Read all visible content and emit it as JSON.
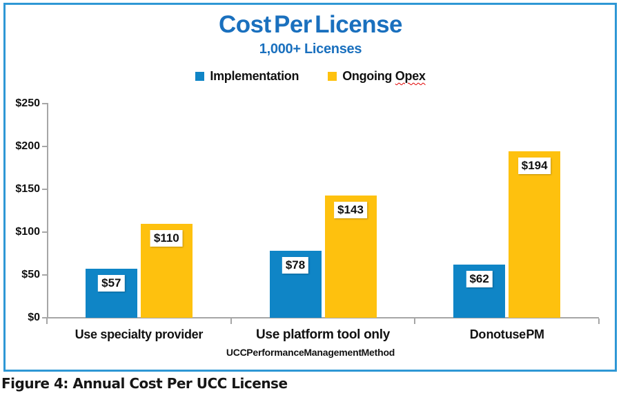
{
  "figure": {
    "caption": "Figure 4: Annual Cost Per UCC License"
  },
  "legend": {
    "items": [
      {
        "label": "Implementation",
        "swatch_color": "#0F85C6"
      },
      {
        "label_prefix": "Ongoing ",
        "label_flagged": "Opex",
        "swatch_color": "#FEC10E"
      }
    ]
  },
  "colors": {
    "title_blue": "#1A70BE",
    "border_blue": "#2E97D5",
    "axis_gray": "#A6A6A6",
    "bar_blue": "#0F85C6",
    "bar_yellow": "#FEC10E",
    "spellcheck_red": "#E00000"
  },
  "chart_data": {
    "type": "bar",
    "title": "Cost Per License",
    "subtitle": "1,000+ Licenses",
    "categories": [
      "Use specialty provider",
      "Use platform tool only",
      "Do not use PM"
    ],
    "series": [
      {
        "name": "Implementation",
        "color": "#0F85C6",
        "values": [
          57,
          78,
          62
        ],
        "value_labels": [
          "$57",
          "$78",
          "$62"
        ]
      },
      {
        "name": "Ongoing Opex",
        "color": "#FEC10E",
        "values": [
          110,
          143,
          194
        ],
        "value_labels": [
          "$110",
          "$143",
          "$194"
        ]
      }
    ],
    "xlabel": "UCC Performance Management Method",
    "ylabel": "",
    "ylim": [
      0,
      250
    ],
    "yticks": {
      "values": [
        0,
        50,
        100,
        150,
        200,
        250
      ],
      "labels": [
        "$0",
        "$50",
        "$100",
        "$150",
        "$200",
        "$250"
      ]
    },
    "grid": false,
    "legend_position": "top",
    "data_labels": "inside-top, white box"
  }
}
